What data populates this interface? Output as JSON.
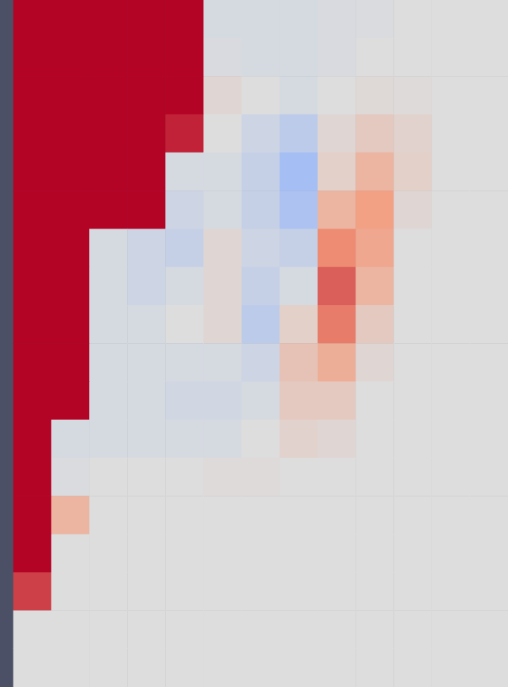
{
  "chart_data": {
    "type": "heatmap",
    "tick_labels": false,
    "zlim": [
      -1,
      1
    ],
    "values": [
      [
        1,
        1,
        1,
        1,
        1,
        -0.05,
        -0.05,
        -0.05,
        -0.03,
        -0.02,
        0,
        0,
        0
      ],
      [
        1,
        1,
        1,
        1,
        1,
        -0.03,
        -0.05,
        -0.05,
        -0.03,
        0,
        0,
        0,
        0
      ],
      [
        1,
        1,
        1,
        1,
        1,
        0.05,
        0,
        -0.05,
        0,
        0.03,
        0.02,
        0,
        0
      ],
      [
        1,
        1,
        1,
        1,
        0.9,
        0,
        -0.1,
        -0.2,
        0.05,
        0.15,
        0.08,
        0,
        0
      ],
      [
        1,
        1,
        1,
        1,
        -0.05,
        -0.05,
        -0.15,
        -0.35,
        0.1,
        0.3,
        0.1,
        0,
        0
      ],
      [
        1,
        1,
        1,
        1,
        -0.1,
        -0.05,
        -0.15,
        -0.3,
        0.3,
        0.45,
        0.05,
        0,
        0
      ],
      [
        1,
        1,
        -0.05,
        -0.1,
        -0.15,
        0.05,
        -0.1,
        -0.15,
        0.55,
        0.4,
        0,
        0,
        0
      ],
      [
        1,
        1,
        -0.05,
        -0.1,
        -0.05,
        0.05,
        -0.15,
        -0.05,
        0.7,
        0.3,
        0,
        0,
        0
      ],
      [
        1,
        1,
        -0.05,
        -0.05,
        0,
        0.05,
        -0.2,
        0.1,
        0.6,
        0.15,
        0,
        0,
        0
      ],
      [
        1,
        1,
        -0.05,
        -0.05,
        -0.05,
        -0.05,
        -0.1,
        0.2,
        0.35,
        0.05,
        0,
        0,
        0
      ],
      [
        1,
        1,
        -0.05,
        -0.05,
        -0.08,
        -0.08,
        -0.05,
        0.15,
        0.15,
        0,
        0,
        0,
        0
      ],
      [
        1,
        -0.05,
        -0.05,
        -0.05,
        -0.05,
        -0.05,
        0,
        0.08,
        0.05,
        0,
        0,
        0,
        0
      ],
      [
        1,
        -0.02,
        0,
        0,
        0,
        0.02,
        0.02,
        0,
        0,
        0,
        0,
        0,
        0
      ],
      [
        1,
        0.3,
        0,
        0,
        0,
        0,
        0,
        0,
        0,
        0,
        0,
        0,
        0
      ],
      [
        1,
        0,
        0,
        0,
        0,
        0,
        0,
        0,
        0,
        0,
        0,
        0,
        0
      ],
      [
        0.8,
        0,
        0,
        0,
        0,
        0,
        0,
        0,
        0,
        0,
        0,
        0,
        0
      ],
      [
        0,
        0,
        0,
        0,
        0,
        0,
        0,
        0,
        0,
        0,
        0,
        0,
        0
      ],
      [
        0,
        0,
        0,
        0,
        0,
        0,
        0,
        0,
        0,
        0,
        0,
        0,
        0
      ]
    ]
  }
}
